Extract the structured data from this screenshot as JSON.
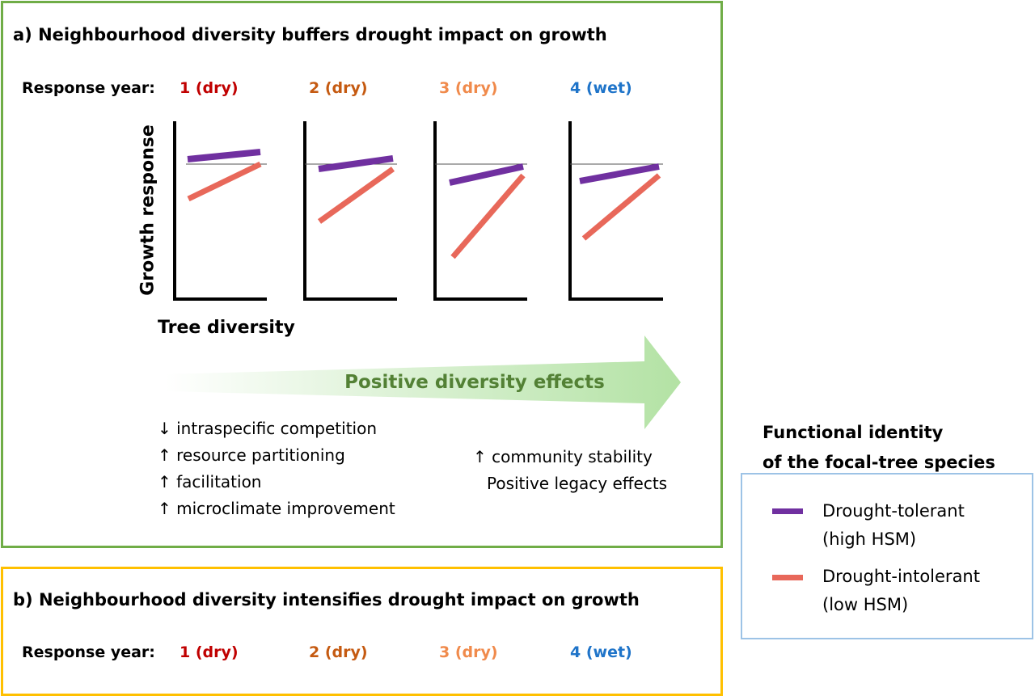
{
  "panel_a": {
    "title": "a) Neighbourhood diversity buffers drought impact on growth",
    "response_year_label": "Response year:",
    "years": [
      {
        "label": "1 (dry)",
        "color": "#c00000"
      },
      {
        "label": "2 (dry)",
        "color": "#c55a11"
      },
      {
        "label": "3 (dry)",
        "color": "#f08a4b"
      },
      {
        "label": "4 (wet)",
        "color": "#1f74c9"
      }
    ],
    "y_axis_label": "Growth response",
    "x_axis_label": "Tree diversity",
    "arrow_label": "Positive diversity effects",
    "mechanisms_left": [
      "↓ intraspecific competition",
      "↑ resource partitioning",
      "↑ facilitation",
      "↑ microclimate improvement"
    ],
    "mechanisms_right": [
      "↑ community stability",
      "Positive legacy effects"
    ]
  },
  "panel_b": {
    "title": "b) Neighbourhood diversity intensifies drought impact on growth",
    "response_year_label": "Response year:",
    "years": [
      {
        "label": "1 (dry)",
        "color": "#c00000"
      },
      {
        "label": "2 (dry)",
        "color": "#c55a11"
      },
      {
        "label": "3 (dry)",
        "color": "#f08a4b"
      },
      {
        "label": "4 (wet)",
        "color": "#1f74c9"
      }
    ]
  },
  "legend": {
    "title_line1": "Functional identity",
    "title_line2": "of the focal-tree species",
    "items": [
      {
        "line1": "Drought-tolerant",
        "line2": "(high HSM)",
        "color": "#7030a0"
      },
      {
        "line1": "Drought-intolerant",
        "line2": "(low HSM)",
        "color": "#e8685a"
      }
    ]
  },
  "colors": {
    "panel_a_border": "#70ad47",
    "panel_b_border": "#ffc000",
    "legend_border": "#9dc3e6",
    "arrow_text": "#538135"
  }
}
